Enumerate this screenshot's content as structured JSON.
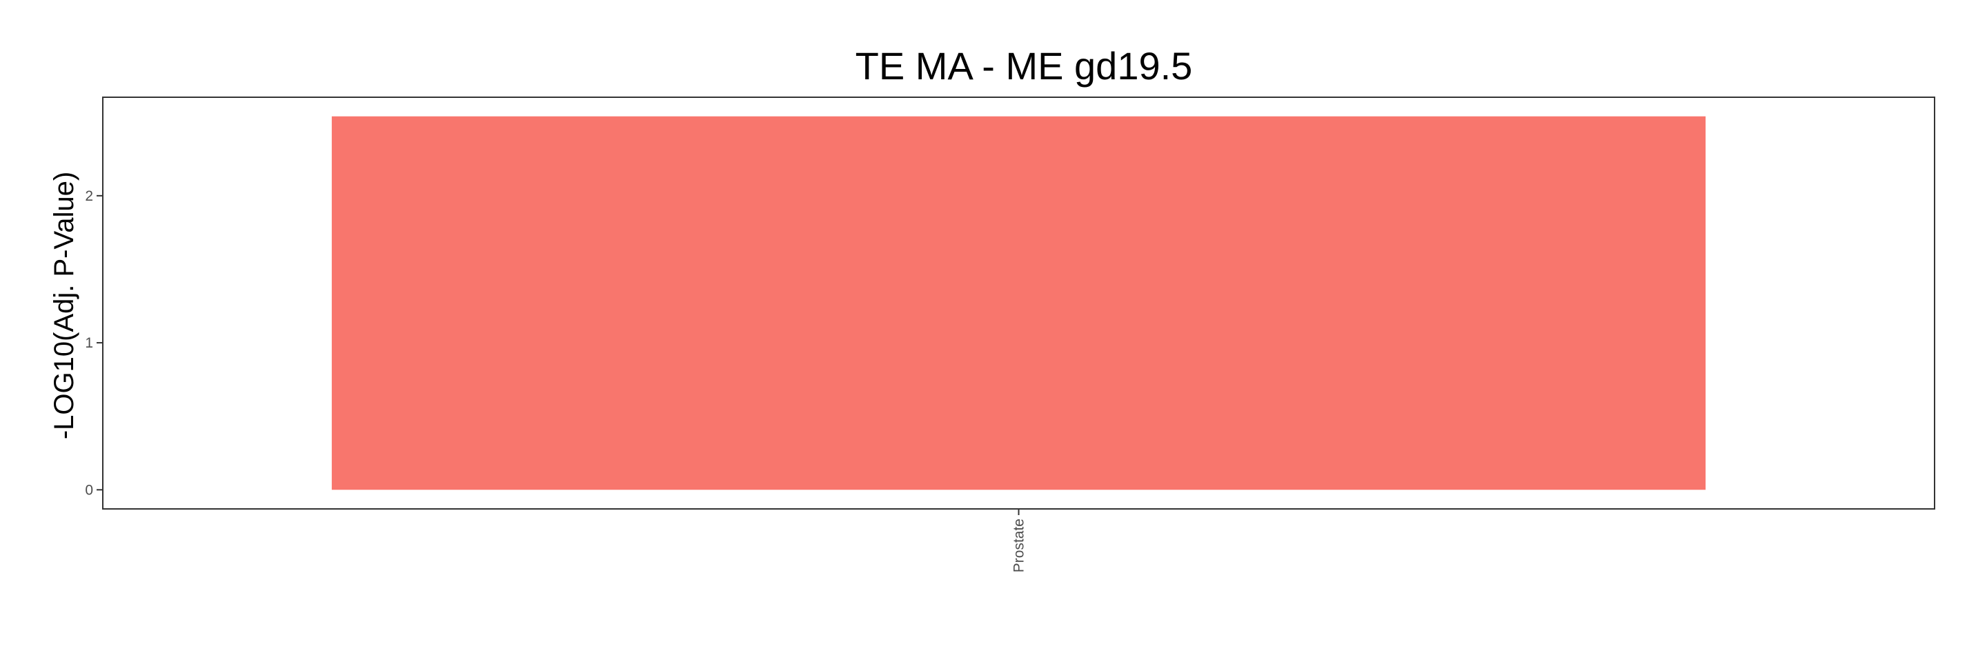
{
  "chart_data": {
    "type": "bar",
    "title": "TE MA - ME gd19.5",
    "xlabel": "",
    "ylabel": "-LOG10(Adj. P-Value)",
    "categories": [
      "Prostate"
    ],
    "values": [
      2.54
    ],
    "ylim": [
      -0.13,
      2.67
    ],
    "yticks": [
      0,
      1,
      2
    ],
    "grid": false,
    "legend": "none",
    "bar_color": "#F8766D"
  }
}
